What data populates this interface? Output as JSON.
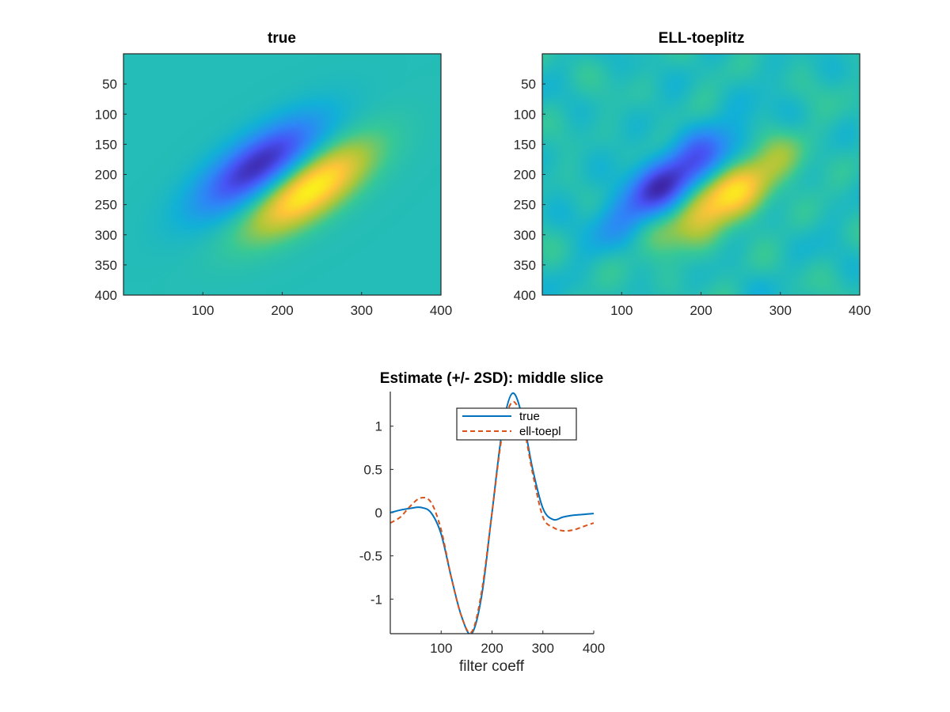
{
  "chart_data": [
    {
      "type": "heatmap",
      "title": "true",
      "xlim": [
        0,
        400
      ],
      "ylim": [
        0,
        400
      ],
      "y_reversed": true,
      "xticks": [
        100,
        200,
        300,
        400
      ],
      "yticks": [
        50,
        100,
        150,
        200,
        250,
        300,
        350,
        400
      ],
      "colormap": "parula",
      "description_of_field": "oriented Gabor-like filter: negative lobe centered ~ (170,185), positive lobe centered ~ (235,225), oriented along diagonal",
      "features": {
        "negative_lobe": {
          "x": 170,
          "y": 185,
          "amp": -1.4
        },
        "positive_lobe": {
          "x": 235,
          "y": 225,
          "amp": 1.4
        },
        "noise": 0
      }
    },
    {
      "type": "heatmap",
      "title": "ELL-toeplitz",
      "xlim": [
        0,
        400
      ],
      "ylim": [
        0,
        400
      ],
      "y_reversed": true,
      "xticks": [
        100,
        200,
        300,
        400
      ],
      "yticks": [
        50,
        100,
        150,
        200,
        250,
        300,
        350,
        400
      ],
      "colormap": "parula",
      "features": {
        "negative_lobe": {
          "x": 165,
          "y": 210,
          "amp": -1.35
        },
        "positive_lobe": {
          "x": 230,
          "y": 235,
          "amp": 1.3
        },
        "noise": 0.18
      }
    },
    {
      "type": "line",
      "title": "Estimate (+/- 2SD): middle slice",
      "xlabel": "filter coeff",
      "ylabel": "",
      "xlim": [
        0,
        400
      ],
      "ylim": [
        -1.4,
        1.4
      ],
      "xticks": [
        100,
        200,
        300,
        400
      ],
      "yticks": [
        -1,
        -0.5,
        0,
        0.5,
        1
      ],
      "ytick_labels": [
        "-1",
        "-0.5",
        "0",
        "0.5",
        "1"
      ],
      "legend_position": "top-center",
      "series": [
        {
          "name": "true",
          "color": "#0072bd",
          "style": "solid",
          "x": [
            0,
            20,
            40,
            60,
            80,
            100,
            120,
            140,
            160,
            180,
            200,
            220,
            240,
            260,
            280,
            300,
            320,
            340,
            360,
            380,
            400
          ],
          "y": [
            0.0,
            0.03,
            0.05,
            0.06,
            0.0,
            -0.25,
            -0.75,
            -1.2,
            -1.4,
            -0.95,
            0.0,
            0.95,
            1.38,
            1.1,
            0.5,
            0.05,
            -0.08,
            -0.05,
            -0.03,
            -0.02,
            -0.01
          ]
        },
        {
          "name": "ell-toepl",
          "color": "#d95319",
          "style": "dashed",
          "x": [
            0,
            20,
            40,
            60,
            80,
            100,
            120,
            140,
            160,
            180,
            200,
            220,
            240,
            260,
            280,
            300,
            320,
            340,
            360,
            380,
            400
          ],
          "y": [
            -0.12,
            -0.05,
            0.08,
            0.17,
            0.12,
            -0.2,
            -0.75,
            -1.2,
            -1.38,
            -0.9,
            0.0,
            0.9,
            1.28,
            1.05,
            0.45,
            -0.05,
            -0.17,
            -0.21,
            -0.2,
            -0.16,
            -0.12
          ]
        }
      ]
    }
  ]
}
